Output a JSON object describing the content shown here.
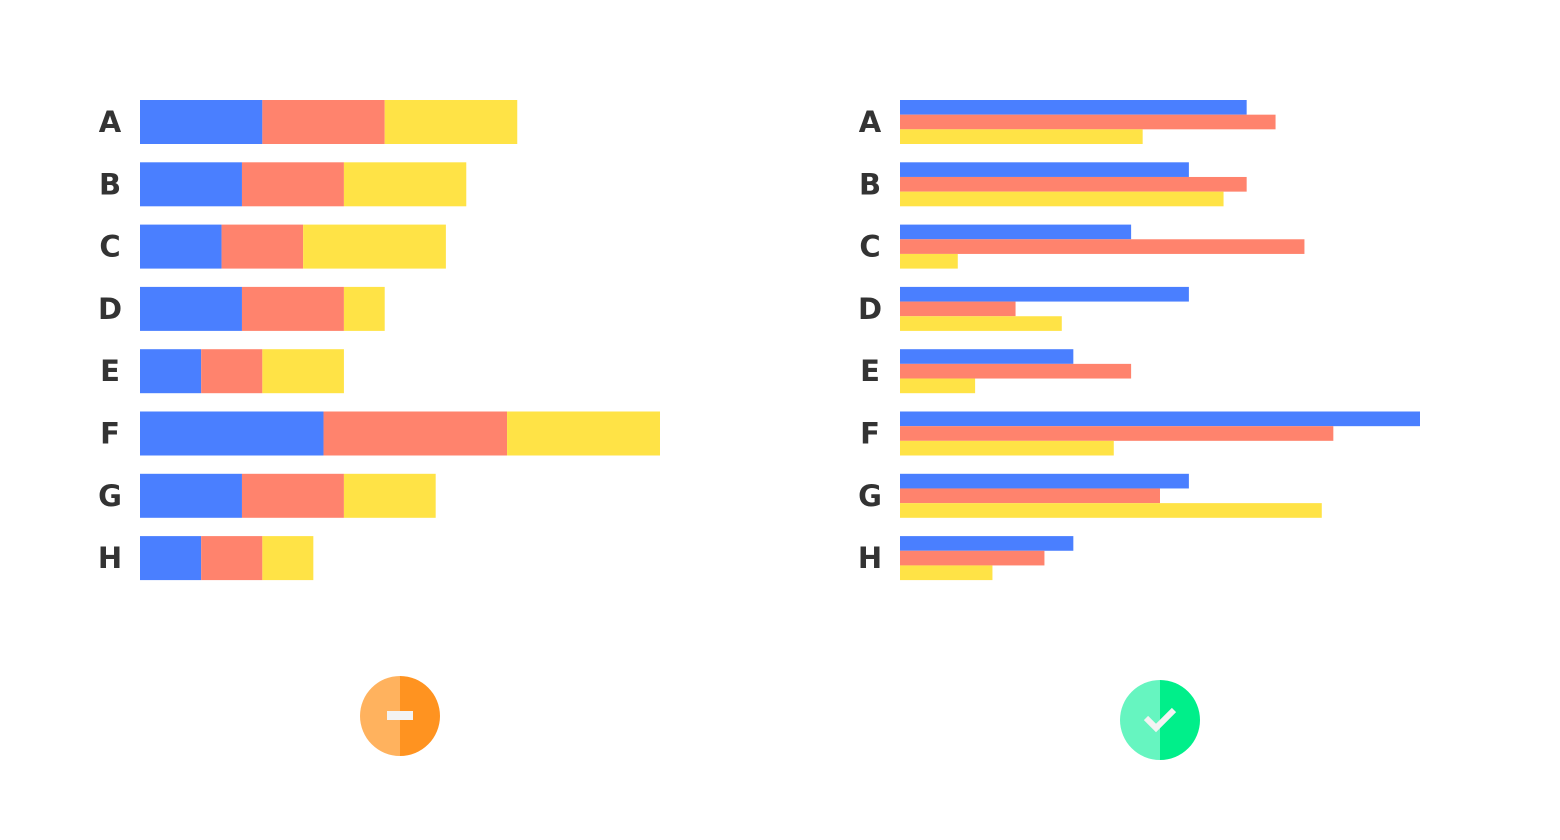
{
  "chart_data": [
    {
      "type": "bar",
      "orientation": "horizontal",
      "stacked": true,
      "categories": [
        "A",
        "B",
        "C",
        "D",
        "E",
        "F",
        "G",
        "H"
      ],
      "series": [
        {
          "color": "#4a7fff",
          "values": [
            6,
            5,
            4,
            5,
            3,
            9,
            5,
            3
          ]
        },
        {
          "color": "#ff836d",
          "values": [
            6,
            5,
            4,
            5,
            3,
            9,
            5,
            3
          ]
        },
        {
          "color": "#ffe346",
          "values": [
            6.5,
            6,
            7,
            2,
            4,
            7.5,
            4.5,
            2.5
          ]
        }
      ]
    },
    {
      "type": "bar",
      "orientation": "horizontal",
      "stacked": false,
      "categories": [
        "A",
        "B",
        "C",
        "D",
        "E",
        "F",
        "G",
        "H"
      ],
      "series": [
        {
          "color": "#4a7fff",
          "values": [
            6,
            5,
            4,
            5,
            3,
            9,
            5,
            3
          ]
        },
        {
          "color": "#ff836d",
          "values": [
            6.5,
            6,
            7,
            2,
            4,
            7.5,
            4.5,
            2.5
          ]
        },
        {
          "color": "#ffe346",
          "values": [
            4.2,
            5.6,
            1,
            2.8,
            1.3,
            3.7,
            7.3,
            1.6
          ]
        }
      ]
    }
  ]
}
